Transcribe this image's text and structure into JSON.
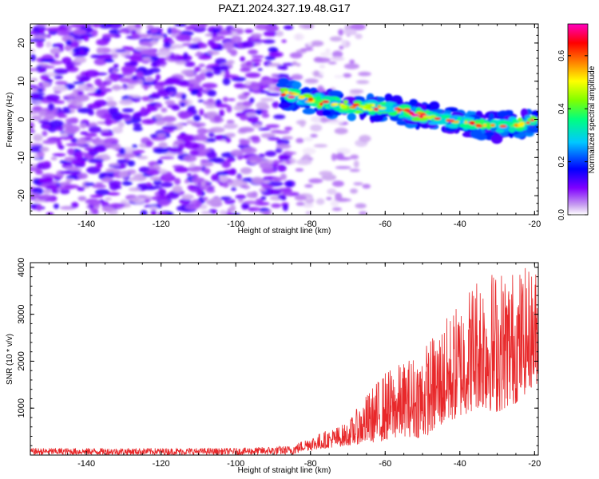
{
  "title": "PAZ1.2024.327.19.48.G17",
  "chart_data": [
    {
      "type": "heatmap",
      "xlabel": "Height of straight line (km)",
      "ylabel": "Frequency (Hz)",
      "xlim": [
        -155,
        -19
      ],
      "ylim": [
        -25,
        25
      ],
      "xticks": [
        -140,
        -120,
        -100,
        -80,
        -60,
        -40,
        -20
      ],
      "yticks": [
        -20,
        -10,
        0,
        10,
        20
      ],
      "colorbar": {
        "label": "Normalized spectral amplitude",
        "range": [
          0.0,
          0.72
        ],
        "ticks": [
          0.0,
          0.2,
          0.4,
          0.6
        ],
        "colors": [
          "#ffffff",
          "#c8a0f0",
          "#8000ff",
          "#0000ff",
          "#00c8ff",
          "#00ff80",
          "#80ff00",
          "#ffff00",
          "#ff8000",
          "#ff0000",
          "#ff00c0"
        ]
      },
      "signal_track": {
        "x": [
          -88,
          -80,
          -70,
          -60,
          -50,
          -40,
          -30,
          -20
        ],
        "y": [
          7,
          5,
          3.5,
          3,
          1,
          -1,
          -2,
          -0.5
        ],
        "peak_amplitude": 0.72
      },
      "noise_region": {
        "x_range": [
          -155,
          -85
        ],
        "y_range": [
          -25,
          25
        ],
        "amplitude_range": [
          0.02,
          0.15
        ]
      }
    },
    {
      "type": "line",
      "xlabel": "Height of straight line (km)",
      "ylabel": "SNR (10 * v/v)",
      "xlim": [
        -155,
        -19
      ],
      "ylim": [
        0,
        4100
      ],
      "xticks": [
        -140,
        -120,
        -100,
        -80,
        -60,
        -40,
        -20
      ],
      "yticks": [
        1000,
        2000,
        3000,
        4000
      ],
      "color": "#e8282a",
      "envelope": {
        "x": [
          -155,
          -100,
          -85,
          -80,
          -70,
          -65,
          -60,
          -55,
          -50,
          -45,
          -40,
          -35,
          -30,
          -25,
          -20
        ],
        "y_low": [
          0,
          0,
          0,
          100,
          200,
          250,
          300,
          400,
          350,
          600,
          800,
          1000,
          900,
          1100,
          1500
        ],
        "y_high": [
          150,
          150,
          200,
          400,
          700,
          1300,
          1800,
          2000,
          2300,
          2800,
          3300,
          4000,
          4000,
          4000,
          4000
        ]
      }
    }
  ]
}
